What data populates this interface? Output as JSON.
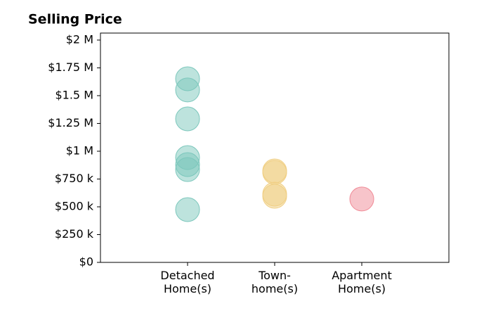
{
  "chart_data": {
    "type": "strip",
    "title": "Selling Price",
    "categories": [
      "Detached\nHome(s)",
      "Town-\nhome(s)",
      "Apartment\nHome(s)"
    ],
    "values": [
      [
        1652000,
        1551000,
        1291000,
        943000,
        880000,
        835000,
        475000
      ],
      [
        823000,
        810000,
        614000,
        595000
      ],
      [
        570000
      ]
    ],
    "colors": [
      "#7cc7bc",
      "#f0cf84",
      "#f08a96"
    ],
    "ylim": [
      0,
      2063000
    ],
    "yticks": [
      {
        "value": 0,
        "label": "$0"
      },
      {
        "value": 250000,
        "label": "$250 k"
      },
      {
        "value": 500000,
        "label": "$500 k"
      },
      {
        "value": 750000,
        "label": "$750 k"
      },
      {
        "value": 1000000,
        "label": "$1 M"
      },
      {
        "value": 1250000,
        "label": "$1.25 M"
      },
      {
        "value": 1500000,
        "label": "$1.5 M"
      },
      {
        "value": 1750000,
        "label": "$1.75 M"
      },
      {
        "value": 2000000,
        "label": "$2 M"
      }
    ]
  }
}
